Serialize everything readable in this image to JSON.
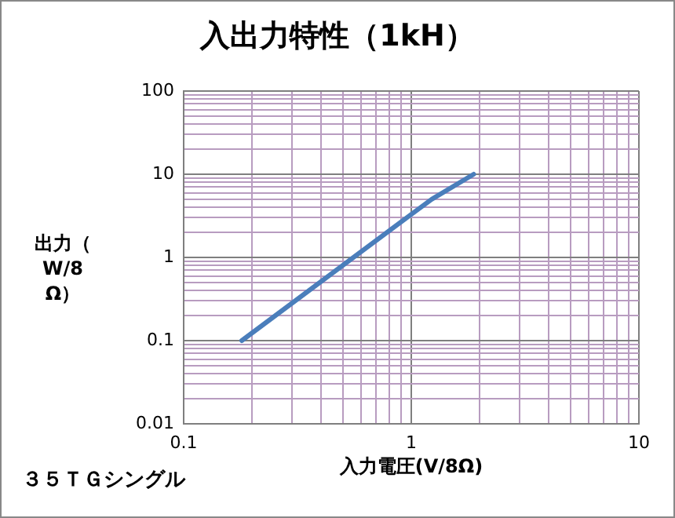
{
  "chart_data": {
    "type": "line",
    "title": "入出力特性（1kH）",
    "xlabel": "入力電圧(V/8Ω)",
    "ylabel": "出力（W/8Ω）",
    "annotations": [
      "３５ＴＧシングル"
    ],
    "log": "xy",
    "grid": true,
    "legend": false,
    "marker": "none",
    "line_style": "solid",
    "x": [
      0.18,
      1,
      1.23,
      1.88
    ],
    "series": [
      {
        "color": "#4a7ebb",
        "values": [
          0.1,
          3.3,
          5,
          10
        ]
      }
    ],
    "xlim": [
      0.1,
      10
    ],
    "ylim": [
      0.01,
      100
    ],
    "xticks": [
      0.1,
      {
        "value": 0.2,
        "label": null
      },
      {
        "value": 0.3,
        "label": null
      },
      {
        "value": 0.4,
        "label": null
      },
      {
        "value": 0.5,
        "label": null
      },
      {
        "value": 0.6,
        "label": null
      },
      {
        "value": 0.7,
        "label": null
      },
      {
        "value": 0.8,
        "label": null
      },
      {
        "value": 0.9,
        "label": null
      },
      1,
      {
        "value": 2,
        "label": null
      },
      {
        "value": 3,
        "label": null
      },
      {
        "value": 4,
        "label": null
      },
      {
        "value": 5,
        "label": null
      },
      {
        "value": 6,
        "label": null
      },
      {
        "value": 7,
        "label": null
      },
      {
        "value": 8,
        "label": null
      },
      {
        "value": 9,
        "label": null
      },
      10
    ],
    "yticks": [
      0.01,
      {
        "value": 0.02,
        "label": null
      },
      {
        "value": 0.03,
        "label": null
      },
      {
        "value": 0.04,
        "label": null
      },
      {
        "value": 0.05,
        "label": null
      },
      {
        "value": 0.06,
        "label": null
      },
      {
        "value": 0.07,
        "label": null
      },
      {
        "value": 0.08,
        "label": null
      },
      {
        "value": 0.09,
        "label": null
      },
      0.1,
      {
        "value": 0.2,
        "label": null
      },
      {
        "value": 0.3,
        "label": null
      },
      {
        "value": 0.4,
        "label": null
      },
      {
        "value": 0.5,
        "label": null
      },
      {
        "value": 0.6,
        "label": null
      },
      {
        "value": 0.7,
        "label": null
      },
      {
        "value": 0.8,
        "label": null
      },
      {
        "value": 0.9,
        "label": null
      },
      1,
      {
        "value": 2,
        "label": null
      },
      {
        "value": 3,
        "label": null
      },
      {
        "value": 4,
        "label": null
      },
      {
        "value": 5,
        "label": null
      },
      {
        "value": 6,
        "label": null
      },
      {
        "value": 7,
        "label": null
      },
      {
        "value": 8,
        "label": null
      },
      {
        "value": 9,
        "label": null
      },
      10,
      {
        "value": 20,
        "label": null
      },
      {
        "value": 30,
        "label": null
      },
      {
        "value": 40,
        "label": null
      },
      {
        "value": 50,
        "label": null
      },
      {
        "value": 60,
        "label": null
      },
      {
        "value": 70,
        "label": null
      },
      {
        "value": 80,
        "label": null
      },
      {
        "value": 90,
        "label": null
      },
      100
    ]
  }
}
